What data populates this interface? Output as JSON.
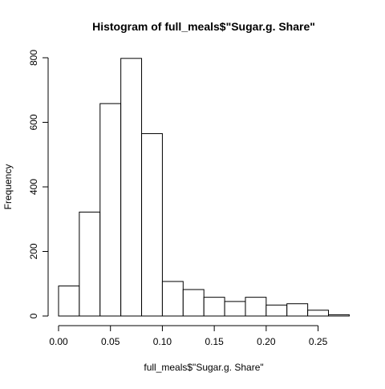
{
  "chart_data": {
    "type": "bar",
    "title": "Histogram of full_meals$\"Sugar.g. Share\"",
    "xlabel": "full_meals$\"Sugar.g. Share\"",
    "ylabel": "Frequency",
    "xlim": [
      0.0,
      0.28
    ],
    "ylim": [
      0,
      800
    ],
    "grid": false,
    "bin_width": 0.02,
    "bins": [
      {
        "x0": 0.0,
        "x1": 0.02,
        "count": 93
      },
      {
        "x0": 0.02,
        "x1": 0.04,
        "count": 322
      },
      {
        "x0": 0.04,
        "x1": 0.06,
        "count": 658
      },
      {
        "x0": 0.06,
        "x1": 0.08,
        "count": 798
      },
      {
        "x0": 0.08,
        "x1": 0.1,
        "count": 565
      },
      {
        "x0": 0.1,
        "x1": 0.12,
        "count": 107
      },
      {
        "x0": 0.12,
        "x1": 0.14,
        "count": 82
      },
      {
        "x0": 0.14,
        "x1": 0.16,
        "count": 58
      },
      {
        "x0": 0.16,
        "x1": 0.18,
        "count": 45
      },
      {
        "x0": 0.18,
        "x1": 0.2,
        "count": 58
      },
      {
        "x0": 0.2,
        "x1": 0.22,
        "count": 34
      },
      {
        "x0": 0.22,
        "x1": 0.24,
        "count": 38
      },
      {
        "x0": 0.24,
        "x1": 0.26,
        "count": 18
      },
      {
        "x0": 0.26,
        "x1": 0.28,
        "count": 4
      }
    ],
    "x_ticks": [
      {
        "value": 0.0,
        "label": "0.00"
      },
      {
        "value": 0.05,
        "label": "0.05"
      },
      {
        "value": 0.1,
        "label": "0.10"
      },
      {
        "value": 0.15,
        "label": "0.15"
      },
      {
        "value": 0.2,
        "label": "0.20"
      },
      {
        "value": 0.25,
        "label": "0.25"
      }
    ],
    "y_ticks": [
      {
        "value": 0,
        "label": "0"
      },
      {
        "value": 200,
        "label": "200"
      },
      {
        "value": 400,
        "label": "400"
      },
      {
        "value": 600,
        "label": "600"
      },
      {
        "value": 800,
        "label": "800"
      }
    ]
  }
}
